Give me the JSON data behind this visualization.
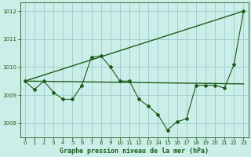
{
  "background_color": "#cceee8",
  "grid_color": "#99cccc",
  "line_color": "#1a5c1a",
  "title": "Graphe pression niveau de la mer (hPa)",
  "xlim": [
    -0.5,
    23.5
  ],
  "ylim": [
    1007.5,
    1012.3
  ],
  "yticks": [
    1008,
    1009,
    1010,
    1011,
    1012
  ],
  "xticks": [
    0,
    1,
    2,
    3,
    4,
    5,
    6,
    7,
    8,
    9,
    10,
    11,
    12,
    13,
    14,
    15,
    16,
    17,
    18,
    19,
    20,
    21,
    22,
    23
  ],
  "line1_x": [
    0,
    1,
    2,
    3,
    4,
    5,
    6,
    7,
    8,
    9,
    10,
    11,
    12,
    13,
    14,
    15,
    16,
    17,
    18,
    19,
    20,
    21,
    22,
    23
  ],
  "line1_y": [
    1009.5,
    1009.2,
    1009.5,
    1009.1,
    1008.85,
    1008.85,
    1009.35,
    1010.35,
    1010.4,
    1010.0,
    1009.5,
    1009.5,
    1008.85,
    1008.6,
    1008.3,
    1007.75,
    1008.05,
    1008.15,
    1009.35,
    1009.35,
    1009.35,
    1009.25,
    1010.1,
    1012.0
  ],
  "line2_x": [
    0,
    23
  ],
  "line2_y": [
    1009.5,
    1012.0
  ],
  "line3_x": [
    0,
    23
  ],
  "line3_y": [
    1009.5,
    1009.4
  ]
}
